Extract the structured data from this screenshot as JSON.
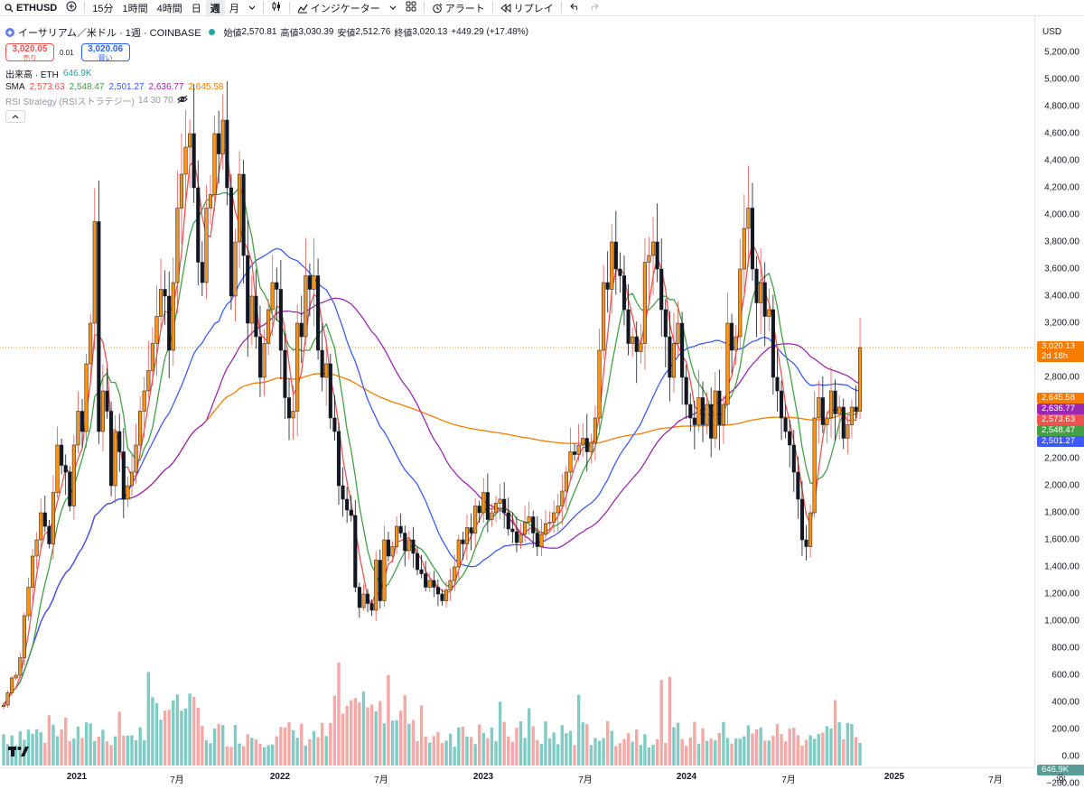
{
  "toolbar": {
    "symbol": "ETHUSD",
    "intervals": [
      "15分",
      "1時間",
      "4時間",
      "日",
      "週",
      "月"
    ],
    "active_interval": "週",
    "indicators_label": "インジケーター",
    "alert_label": "アラート",
    "replay_label": "リプレイ"
  },
  "legend": {
    "title": "イーサリアム／米ドル · 1週 · COINBASE",
    "ohlc": [
      {
        "k": "始値",
        "v": "2,570.81"
      },
      {
        "k": "高値",
        "v": "3,030.39"
      },
      {
        "k": "安値",
        "v": "2,512.76"
      },
      {
        "k": "終値",
        "v": "3,020.13"
      }
    ],
    "change": "+449.29 (+17.48%)",
    "sell_price": "3,020.05",
    "sell_label": "売り",
    "spread": "0.01",
    "buy_price": "3,020.06",
    "buy_label": "買い",
    "volume_label": "出来高 · ETH",
    "volume_value": "646.9K",
    "sma_label": "SMA",
    "sma_values": [
      "2,573.63",
      "2,548.47",
      "2,501.27",
      "2,636.77",
      "2,645.58"
    ],
    "rsi_label": "RSI Strategy (RSIストラテジー)",
    "rsi_params": "14 30 70"
  },
  "price_axis": {
    "currency": "USD",
    "ticks": [
      "5,200.00",
      "5,000.00",
      "4,800.00",
      "4,600.00",
      "4,400.00",
      "4,200.00",
      "4,000.00",
      "3,800.00",
      "3,600.00",
      "3,400.00",
      "3,200.00",
      "3,000.00",
      "2,800.00",
      "2,600.00",
      "2,400.00",
      "2,200.00",
      "2,000.00",
      "1,800.00",
      "1,600.00",
      "1,400.00",
      "1,200.00",
      "1,000.00",
      "800.00",
      "600.00",
      "400.00",
      "200.00",
      "0.00",
      "−200.00"
    ],
    "last_price_tag": "3,020.13",
    "countdown": "2d 18h",
    "sma_tags": [
      "2,645.58",
      "2,636.77",
      "2,573.63",
      "2,548.47",
      "2,501.27"
    ],
    "volume_tag": "646.9K"
  },
  "time_axis": {
    "labels": [
      "2021",
      "7月",
      "2022",
      "7月",
      "2023",
      "7月",
      "2024",
      "7月",
      "2025",
      "7月"
    ]
  },
  "colors": {
    "up": "#26a69a",
    "down": "#ef5350",
    "candle_up": "#f7931a",
    "candle_down": "#131722",
    "sma1": "#ef5350",
    "sma2": "#43a047",
    "sma3": "#3d5afe",
    "sma4": "#9c27b0",
    "sma5": "#f57c00"
  },
  "chart_data": {
    "type": "candlestick",
    "title": "イーサリアム／米ドル · 1週 · COINBASE",
    "yrange": [
      -200,
      5250
    ],
    "x_range": [
      "2020-11",
      "2025-07"
    ],
    "closes": [
      380,
      470,
      580,
      600,
      730,
      1040,
      1250,
      1480,
      1600,
      1800,
      1700,
      1570,
      1950,
      2300,
      2150,
      2100,
      1850,
      2300,
      2550,
      2400,
      2900,
      3200,
      3950,
      2400,
      2700,
      2550,
      2000,
      2400,
      2250,
      1900,
      2000,
      2100,
      2300,
      2550,
      2700,
      2850,
      3050,
      3250,
      3450,
      3400,
      3000,
      3500,
      4050,
      4300,
      4500,
      4600,
      4200,
      3650,
      3500,
      4050,
      4150,
      4600,
      4450,
      4700,
      4200,
      3400,
      3800,
      4300,
      3700,
      3200,
      3400,
      3100,
      2800,
      3050,
      3300,
      3500,
      3450,
      3000,
      2650,
      2500,
      2550,
      3200,
      3100,
      3550,
      3450,
      3550,
      3000,
      2800,
      2900,
      2500,
      2400,
      2000,
      1900,
      1820,
      1780,
      1250,
      1100,
      1200,
      1130,
      1080,
      1450,
      1150,
      1600,
      1480,
      1550,
      1700,
      1650,
      1520,
      1600,
      1500,
      1380,
      1350,
      1250,
      1300,
      1250,
      1200,
      1150,
      1230,
      1300,
      1400,
      1600,
      1570,
      1690,
      1650,
      1850,
      1800,
      1950,
      1750,
      1800,
      1870,
      1900,
      1800,
      1680,
      1660,
      1580,
      1640,
      1730,
      1770,
      1650,
      1550,
      1640,
      1720,
      1730,
      1800,
      1850,
      1960,
      2100,
      2250,
      2230,
      2300,
      2350,
      2250,
      2320,
      2500,
      3000,
      3500,
      3450,
      3800,
      3600,
      3550,
      3300,
      3050,
      3100,
      2990,
      3050,
      3650,
      3700,
      3800,
      3600,
      3300,
      3100,
      2800,
      3050,
      3200,
      2800,
      2600,
      2500,
      2450,
      2650,
      2450,
      2600,
      2350,
      2700,
      2450,
      2600,
      3200,
      3000,
      3100,
      3600,
      3900,
      4050,
      3600,
      3350,
      3500,
      3250,
      3300,
      2800,
      2700,
      2500,
      2400,
      2300,
      2100,
      1900,
      1600,
      1550,
      1800,
      2500,
      2650,
      2450,
      2500,
      2700,
      2530,
      2580,
      2350,
      2450,
      2580,
      2550,
      3020
    ],
    "volume_series": "weekly volume bars (ETH)",
    "sma_series": [
      {
        "name": "SMA",
        "last": 2573.63
      },
      {
        "name": "SMA",
        "last": 2548.47
      },
      {
        "name": "SMA",
        "last": 2501.27
      },
      {
        "name": "SMA",
        "last": 2636.77
      },
      {
        "name": "SMA",
        "last": 2645.58
      }
    ],
    "last_price": 3020.13,
    "grid": false,
    "legend": "top-left"
  }
}
